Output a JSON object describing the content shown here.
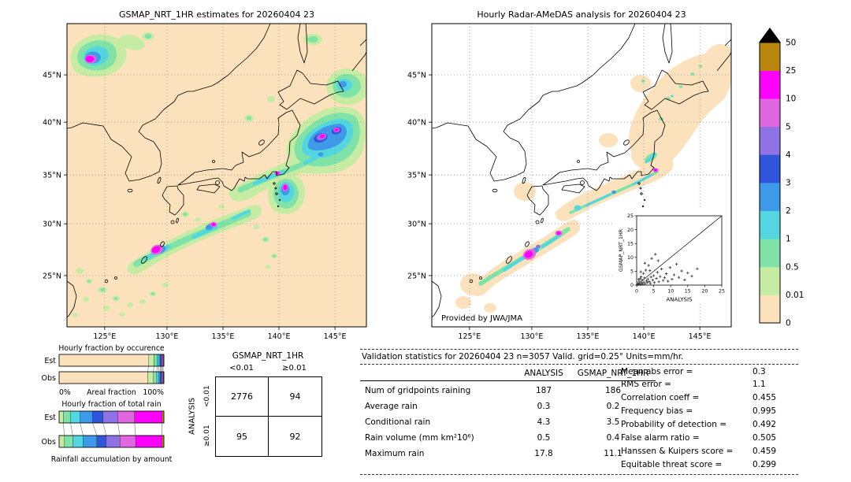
{
  "page": {
    "background": "#ffffff"
  },
  "maps": {
    "left": {
      "title": "GSMAP_NRT_1HR estimates for 20260404 23"
    },
    "right": {
      "title": "Hourly Radar-AMeDAS analysis for 20260404 23",
      "credit": "Provided by JWA/JMA"
    },
    "lon_ticks": [
      "125°E",
      "130°E",
      "135°E",
      "140°E",
      "145°E"
    ],
    "lat_ticks": [
      "45°N",
      "40°N",
      "35°N",
      "30°N",
      "25°N"
    ]
  },
  "colorbar": {
    "labels": [
      "0",
      "0.01",
      "0.5",
      "1",
      "2",
      "3",
      "4",
      "5",
      "10",
      "25",
      "50"
    ],
    "colors": [
      "#fbe2bd",
      "#c6eca4",
      "#7fe3a8",
      "#53d6e0",
      "#3e9ae9",
      "#2f55dd",
      "#8f72e5",
      "#e067e0",
      "#ff00ff",
      "#b8860b"
    ],
    "triangle_color": "#000000"
  },
  "fraction_panel": {
    "occurrence_title": "Hourly fraction by occurence",
    "total_title": "Hourly fraction of total rain",
    "bottom_label": "Rainfall accumulation by amount",
    "axis": {
      "left": "0%",
      "center": "Areal fraction",
      "right": "100%"
    },
    "est_label": "Est",
    "obs_label": "Obs",
    "occurrence": {
      "est": [
        {
          "ci": 0,
          "pct": 85.5
        },
        {
          "ci": 1,
          "pct": 5
        },
        {
          "ci": 2,
          "pct": 3
        },
        {
          "ci": 3,
          "pct": 1.8
        },
        {
          "ci": 4,
          "pct": 1.2
        },
        {
          "ci": 5,
          "pct": 1
        },
        {
          "ci": 6,
          "pct": 0.9
        },
        {
          "ci": 7,
          "pct": 0.8
        },
        {
          "ci": 8,
          "pct": 0.8
        }
      ],
      "obs": [
        {
          "ci": 0,
          "pct": 84.5
        },
        {
          "ci": 1,
          "pct": 5.5
        },
        {
          "ci": 2,
          "pct": 3.2
        },
        {
          "ci": 3,
          "pct": 2
        },
        {
          "ci": 4,
          "pct": 1.4
        },
        {
          "ci": 5,
          "pct": 1
        },
        {
          "ci": 6,
          "pct": 0.9
        },
        {
          "ci": 7,
          "pct": 0.8
        },
        {
          "ci": 8,
          "pct": 0.7
        }
      ]
    },
    "total": {
      "est": [
        {
          "ci": 1,
          "pct": 4
        },
        {
          "ci": 2,
          "pct": 7
        },
        {
          "ci": 3,
          "pct": 9
        },
        {
          "ci": 4,
          "pct": 12
        },
        {
          "ci": 5,
          "pct": 10
        },
        {
          "ci": 6,
          "pct": 14
        },
        {
          "ci": 7,
          "pct": 16
        },
        {
          "ci": 8,
          "pct": 26
        },
        {
          "ci": 9,
          "pct": 2
        }
      ],
      "obs": [
        {
          "ci": 1,
          "pct": 5
        },
        {
          "ci": 2,
          "pct": 8
        },
        {
          "ci": 3,
          "pct": 10
        },
        {
          "ci": 4,
          "pct": 13
        },
        {
          "ci": 5,
          "pct": 9
        },
        {
          "ci": 6,
          "pct": 13
        },
        {
          "ci": 7,
          "pct": 15
        },
        {
          "ci": 8,
          "pct": 25
        },
        {
          "ci": 9,
          "pct": 2
        }
      ]
    }
  },
  "contingency": {
    "col_group": "GSMAP_NRT_1HR",
    "row_group": "ANALYSIS",
    "col_labels": [
      "<0.01",
      "≥0.01"
    ],
    "row_labels": [
      "<0.01",
      "≥0.01"
    ],
    "cells": [
      [
        "2776",
        "94"
      ],
      [
        "95",
        "92"
      ]
    ]
  },
  "stats": {
    "title": "Validation statistics for 20260404 23  n=3057 Valid. grid=0.25° Units=mm/hr.",
    "col_headers": [
      "ANALYSIS",
      "GSMAP_NRT_1HR"
    ],
    "rows": [
      {
        "label": "Num of gridpoints raining",
        "analysis": "187",
        "gsmap": "186"
      },
      {
        "label": "Average rain",
        "analysis": "0.3",
        "gsmap": "0.2"
      },
      {
        "label": "Conditional rain",
        "analysis": "4.3",
        "gsmap": "3.5"
      },
      {
        "label": "Rain volume (mm km²10⁶)",
        "analysis": "0.5",
        "gsmap": "0.4"
      },
      {
        "label": "Maximum rain",
        "analysis": "17.8",
        "gsmap": "11.1"
      }
    ],
    "metrics": [
      {
        "label": "Mean abs error =",
        "value": "0.3"
      },
      {
        "label": "RMS error =",
        "value": "1.1"
      },
      {
        "label": "Correlation coeff =",
        "value": "0.455"
      },
      {
        "label": "Frequency bias =",
        "value": "0.995"
      },
      {
        "label": "Probability of detection =",
        "value": "0.492"
      },
      {
        "label": "False alarm ratio =",
        "value": "0.505"
      },
      {
        "label": "Hanssen & Kuipers score =",
        "value": "0.459"
      },
      {
        "label": "Equitable threat score =",
        "value": "0.299"
      }
    ]
  },
  "chart_data": [
    {
      "type": "heatmap",
      "subtype": "precipitation-map",
      "title": "GSMAP_NRT_1HR estimates for 20260404 23",
      "x_ticks": [
        "125°E",
        "130°E",
        "135°E",
        "140°E",
        "145°E"
      ],
      "y_ticks": [
        "45°N",
        "40°N",
        "35°N",
        "30°N",
        "25°N"
      ],
      "units": "mm/hr",
      "max_value": 11.1,
      "colorbar_levels": [
        0,
        0.01,
        0.5,
        1,
        2,
        3,
        4,
        5,
        10,
        25,
        50
      ],
      "notes": "GSMaP satellite rain estimate over Japan; heavy rain band east of Honshu and along Nansei islands"
    },
    {
      "type": "heatmap",
      "subtype": "precipitation-map",
      "title": "Hourly Radar-AMeDAS analysis for 20260404 23",
      "x_ticks": [
        "125°E",
        "130°E",
        "135°E",
        "140°E",
        "145°E"
      ],
      "y_ticks": [
        "45°N",
        "40°N",
        "35°N",
        "30°N",
        "25°N"
      ],
      "units": "mm/hr",
      "max_value": 17.8,
      "annotation": "Provided by JWA/JMA",
      "notes": "Radar-AMeDAS analysis, coverage patches around Japan; rain bands along Pacific coast and Nansei islands"
    },
    {
      "type": "scatter",
      "xlabel": "ANALYSIS",
      "ylabel": "GSMAP_NRT_1HR",
      "xlim": [
        0,
        25
      ],
      "ylim": [
        0,
        25
      ],
      "x_ticks": [
        0,
        5,
        10,
        15,
        20,
        25
      ],
      "y_ticks": [
        0,
        5,
        10,
        15,
        20,
        25
      ],
      "diagonal": true,
      "points": [
        [
          0.2,
          0.1
        ],
        [
          0.4,
          0.7
        ],
        [
          0.5,
          0.2
        ],
        [
          0.7,
          1.4
        ],
        [
          0.9,
          0.4
        ],
        [
          1,
          2.3
        ],
        [
          1.1,
          0.2
        ],
        [
          1.3,
          3
        ],
        [
          1.5,
          0.8
        ],
        [
          1.6,
          1.9
        ],
        [
          1.8,
          0.3
        ],
        [
          2,
          4.2
        ],
        [
          2.1,
          1.1
        ],
        [
          2.3,
          2.6
        ],
        [
          2.5,
          0.5
        ],
        [
          2.7,
          5.4
        ],
        [
          2.9,
          1.6
        ],
        [
          3.1,
          0.9
        ],
        [
          3.3,
          2.2
        ],
        [
          3.5,
          7.1
        ],
        [
          3.7,
          1.3
        ],
        [
          4,
          0.6
        ],
        [
          4.2,
          2.9
        ],
        [
          4.4,
          9.6
        ],
        [
          4.7,
          1.8
        ],
        [
          5,
          3.4
        ],
        [
          5.2,
          0.9
        ],
        [
          5.5,
          11.1
        ],
        [
          5.8,
          2.4
        ],
        [
          6.1,
          4.6
        ],
        [
          6.5,
          1.2
        ],
        [
          6.9,
          3.1
        ],
        [
          7.3,
          5.8
        ],
        [
          7.8,
          1.7
        ],
        [
          8.2,
          2.7
        ],
        [
          8.7,
          4.1
        ],
        [
          9.2,
          1.4
        ],
        [
          9.8,
          6.3
        ],
        [
          10.4,
          2.1
        ],
        [
          11,
          3.7
        ],
        [
          11.7,
          7.6
        ],
        [
          12.4,
          2.8
        ],
        [
          13.2,
          5.1
        ],
        [
          14.1,
          1.9
        ],
        [
          15,
          4.4
        ],
        [
          16.2,
          3.2
        ],
        [
          17.8,
          5.9
        ],
        [
          0.6,
          2.1
        ],
        [
          1.2,
          4.8
        ],
        [
          2.4,
          7.9
        ],
        [
          3.9,
          5.2
        ],
        [
          6.3,
          8.8
        ]
      ]
    },
    {
      "type": "bar",
      "subtype": "stacked-horizontal-fraction",
      "title": "Hourly fraction by occurence",
      "categories": [
        "Est",
        "Obs"
      ],
      "xlabel": "Areal fraction",
      "x_range_labels": [
        "0%",
        "100%"
      ],
      "classes": [
        "0-0.01",
        "0.01-0.5",
        "0.5-1",
        "1-2",
        "2-3",
        "3-4",
        "4-5",
        "5-10",
        "10-25"
      ],
      "est_segments_pct": [
        85.5,
        5,
        3,
        1.8,
        1.2,
        1,
        0.9,
        0.8,
        0.8
      ],
      "obs_segments_pct": [
        84.5,
        5.5,
        3.2,
        2,
        1.4,
        1,
        0.9,
        0.8,
        0.7
      ]
    },
    {
      "type": "bar",
      "subtype": "stacked-horizontal-fraction",
      "title": "Hourly fraction of total rain",
      "categories": [
        "Est",
        "Obs"
      ],
      "footer": "Rainfall accumulation by amount",
      "classes": [
        "0.01-0.5",
        "0.5-1",
        "1-2",
        "2-3",
        "3-4",
        "4-5",
        "5-10",
        "10-25",
        "25-50"
      ],
      "est_segments_pct": [
        4,
        7,
        9,
        12,
        10,
        14,
        16,
        26,
        2
      ],
      "obs_segments_pct": [
        5,
        8,
        10,
        13,
        9,
        13,
        15,
        25,
        2
      ]
    },
    {
      "type": "table",
      "subtype": "contingency",
      "columns_group": "GSMAP_NRT_1HR",
      "rows_group": "ANALYSIS",
      "columns": [
        "<0.01",
        "≥0.01"
      ],
      "rows": [
        "<0.01",
        "≥0.01"
      ],
      "values": [
        [
          2776,
          94
        ],
        [
          95,
          92
        ]
      ]
    },
    {
      "type": "table",
      "subtype": "validation-statistics",
      "title": "Validation statistics for 20260404 23  n=3057 Valid. grid=0.25° Units=mm/hr.",
      "n": 3057,
      "grid": "0.25°",
      "units": "mm/hr",
      "columns": [
        "ANALYSIS",
        "GSMAP_NRT_1HR"
      ],
      "rows": [
        [
          "Num of gridpoints raining",
          187,
          186
        ],
        [
          "Average rain",
          0.3,
          0.2
        ],
        [
          "Conditional rain",
          4.3,
          3.5
        ],
        [
          "Rain volume (mm km²10⁶)",
          0.5,
          0.4
        ],
        [
          "Maximum rain",
          17.8,
          11.1
        ]
      ],
      "metrics": {
        "mean_abs_error": 0.3,
        "rms_error": 1.1,
        "correlation_coeff": 0.455,
        "frequency_bias": 0.995,
        "probability_of_detection": 0.492,
        "false_alarm_ratio": 0.505,
        "hanssen_kuipers_score": 0.459,
        "equitable_threat_score": 0.299
      }
    }
  ]
}
